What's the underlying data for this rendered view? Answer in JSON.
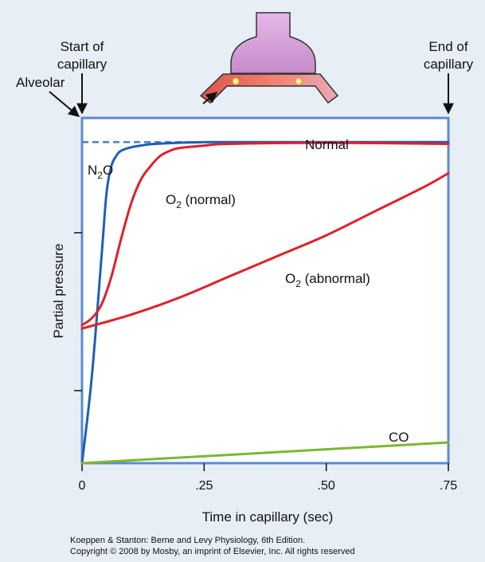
{
  "chart_data": {
    "type": "line",
    "xlabel": "Time in capillary (sec)",
    "ylabel": "Partial pressure",
    "xlim": [
      0,
      0.75
    ],
    "ylim": [
      0,
      1
    ],
    "x_tick_labels": [
      "0",
      ".25",
      ".50",
      ".75"
    ],
    "grid": false,
    "markers": {
      "start": [
        "Start of",
        "capillary"
      ],
      "end": [
        "End of",
        "capillary"
      ],
      "alveolar": "Alveolar"
    },
    "reference": {
      "name": "Alveolar",
      "y": 0.93,
      "label": "Normal"
    },
    "series": [
      {
        "name": "N2O",
        "color": "#1f5fb4",
        "x": [
          0,
          0.02,
          0.04,
          0.05,
          0.06,
          0.07,
          0.08,
          0.1,
          0.12,
          0.15,
          0.25,
          0.5,
          0.75
        ],
        "y": [
          0.0,
          0.25,
          0.6,
          0.78,
          0.86,
          0.89,
          0.905,
          0.915,
          0.92,
          0.925,
          0.93,
          0.93,
          0.93
        ]
      },
      {
        "name": "O2 (normal)",
        "color": "#e0202a",
        "x": [
          0,
          0.02,
          0.04,
          0.06,
          0.08,
          0.1,
          0.12,
          0.14,
          0.16,
          0.18,
          0.2,
          0.25,
          0.3,
          0.5,
          0.75
        ],
        "y": [
          0.4,
          0.42,
          0.46,
          0.54,
          0.65,
          0.75,
          0.82,
          0.86,
          0.89,
          0.905,
          0.913,
          0.92,
          0.925,
          0.928,
          0.925
        ]
      },
      {
        "name": "O2 (abnormal)",
        "color": "#e0202a",
        "x": [
          0,
          0.1,
          0.2,
          0.3,
          0.4,
          0.5,
          0.6,
          0.7,
          0.75
        ],
        "y": [
          0.39,
          0.43,
          0.48,
          0.54,
          0.6,
          0.66,
          0.73,
          0.8,
          0.84
        ]
      },
      {
        "name": "CO",
        "color": "#7bb82f",
        "x": [
          0,
          0.25,
          0.5,
          0.75
        ],
        "y": [
          0.0,
          0.02,
          0.04,
          0.06
        ]
      }
    ],
    "series_labels": [
      {
        "name": "N2O",
        "text": "N",
        "sub": "2",
        "tail": "O"
      },
      {
        "name": "O2 (normal)",
        "text": "O",
        "sub": "2",
        "tail": " (normal)"
      },
      {
        "name": "O2 (abnormal)",
        "text": "O",
        "sub": "2",
        "tail": " (abnormal)"
      },
      {
        "name": "CO",
        "text": "CO",
        "sub": "",
        "tail": ""
      }
    ],
    "colors": {
      "frame": "#5b8bd0",
      "plot_bg": "#ffffff",
      "page_bg": "#e8eef6",
      "reference": "#4f7fd0"
    }
  },
  "credit": {
    "line1": "Koeppen & Stanton: Berne and Levy Physiology, 6th Edition.",
    "line2": "Copyright © 2008 by Mosby, an imprint of Elsevier, Inc. All rights reserved"
  },
  "illustration": {
    "icon": "alveolus-capillary-icon"
  }
}
